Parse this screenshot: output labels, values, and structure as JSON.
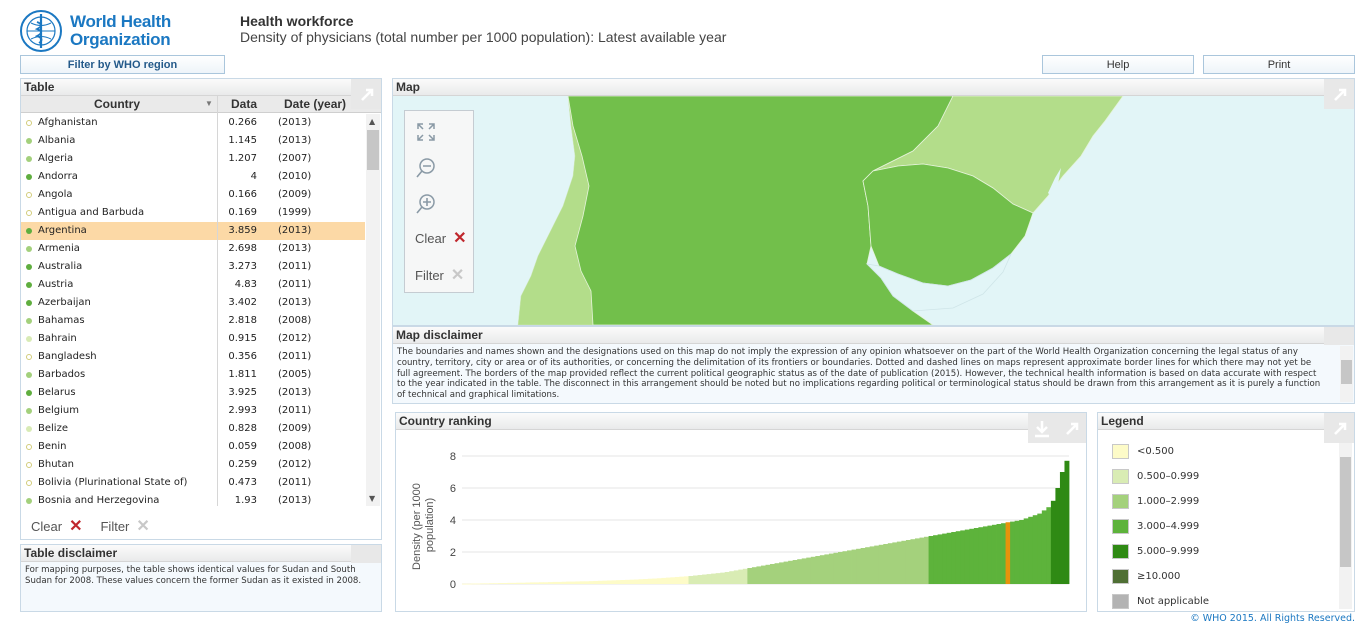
{
  "brand": {
    "logo_line1": "World Health",
    "logo_line2": "Organization",
    "logo_icon": "who-emblem"
  },
  "header": {
    "title": "Health workforce",
    "subtitle": "Density of physicians (total number per 1000 population): Latest available year"
  },
  "toolbar": {
    "filter_region": "Filter by WHO region",
    "help": "Help",
    "print": "Print"
  },
  "table_panel": {
    "title": "Table",
    "columns": [
      "Country",
      "Data",
      "Date (year)"
    ],
    "rows": [
      {
        "country": "Afghanistan",
        "value": "0.266",
        "year": "(2013)",
        "color": "#fdf9c4",
        "hollow": true
      },
      {
        "country": "Albania",
        "value": "1.145",
        "year": "(2013)",
        "color": "#a3d07c"
      },
      {
        "country": "Algeria",
        "value": "1.207",
        "year": "(2007)",
        "color": "#a3d07c"
      },
      {
        "country": "Andorra",
        "value": "4",
        "year": "(2010)",
        "color": "#5fae3f"
      },
      {
        "country": "Angola",
        "value": "0.166",
        "year": "(2009)",
        "color": "#fdf9c4",
        "hollow": true
      },
      {
        "country": "Antigua and Barbuda",
        "value": "0.169",
        "year": "(1999)",
        "color": "#fdf9c4",
        "hollow": true
      },
      {
        "country": "Argentina",
        "value": "3.859",
        "year": "(2013)",
        "color": "#5fae3f",
        "selected": true
      },
      {
        "country": "Armenia",
        "value": "2.698",
        "year": "(2013)",
        "color": "#a3d07c"
      },
      {
        "country": "Australia",
        "value": "3.273",
        "year": "(2011)",
        "color": "#5fae3f"
      },
      {
        "country": "Austria",
        "value": "4.83",
        "year": "(2011)",
        "color": "#5fae3f"
      },
      {
        "country": "Azerbaijan",
        "value": "3.402",
        "year": "(2013)",
        "color": "#5fae3f"
      },
      {
        "country": "Bahamas",
        "value": "2.818",
        "year": "(2008)",
        "color": "#a3d07c"
      },
      {
        "country": "Bahrain",
        "value": "0.915",
        "year": "(2012)",
        "color": "#d8ebb5"
      },
      {
        "country": "Bangladesh",
        "value": "0.356",
        "year": "(2011)",
        "color": "#fdf9c4",
        "hollow": true
      },
      {
        "country": "Barbados",
        "value": "1.811",
        "year": "(2005)",
        "color": "#a3d07c"
      },
      {
        "country": "Belarus",
        "value": "3.925",
        "year": "(2013)",
        "color": "#5fae3f"
      },
      {
        "country": "Belgium",
        "value": "2.993",
        "year": "(2011)",
        "color": "#a3d07c"
      },
      {
        "country": "Belize",
        "value": "0.828",
        "year": "(2009)",
        "color": "#d8ebb5"
      },
      {
        "country": "Benin",
        "value": "0.059",
        "year": "(2008)",
        "color": "#fdf9c4",
        "hollow": true
      },
      {
        "country": "Bhutan",
        "value": "0.259",
        "year": "(2012)",
        "color": "#fdf9c4",
        "hollow": true
      },
      {
        "country": "Bolivia (Plurinational State of)",
        "value": "0.473",
        "year": "(2011)",
        "color": "#fdf9c4",
        "hollow": true
      },
      {
        "country": "Bosnia and Herzegovina",
        "value": "1.93",
        "year": "(2013)",
        "color": "#a3d07c"
      }
    ],
    "clear_label": "Clear",
    "filter_label": "Filter"
  },
  "table_disclaimer": {
    "title": "Table disclaimer",
    "text": "For mapping purposes, the table shows identical values for Sudan and South Sudan for 2008. These values concern the former Sudan as it existed in 2008."
  },
  "map_panel": {
    "title": "Map",
    "clear_label": "Clear",
    "filter_label": "Filter",
    "tools": [
      "fullscreen-icon",
      "zoom-out-icon",
      "zoom-in-icon"
    ]
  },
  "map_disclaimer": {
    "title": "Map disclaimer",
    "text": "The boundaries and names shown and the designations used on this map do not imply the expression of any opinion whatsoever on the part of the World Health Organization concerning the legal status of any country, territory, city or area or of its authorities, or concerning the delimitation of its frontiers or boundaries. Dotted and dashed lines on maps represent approximate border lines for which there may not yet be full agreement. The borders of the map provided reflect the current political geographic status as of the date of publication (2015). However, the technical health information is based on data accurate with respect to the year indicated in the table. The disconnect in this arrangement should be noted but no implications regarding political or terminological status should be drawn from this arrangement as it is purely a function of technical and graphical limitations."
  },
  "ranking_panel": {
    "title": "Country ranking"
  },
  "legend_panel": {
    "title": "Legend",
    "items": [
      {
        "label": "<0.500",
        "color": "#fdfbc8"
      },
      {
        "label": "0.500–0.999",
        "color": "#d9ecb4"
      },
      {
        "label": "1.000–2.999",
        "color": "#a4d17c"
      },
      {
        "label": "3.000–4.999",
        "color": "#5db33b"
      },
      {
        "label": "5.000–9.999",
        "color": "#2f8a14"
      },
      {
        "label": "≥10.000",
        "color": "#4f6f34"
      },
      {
        "label": "Not applicable",
        "color": "#b3b3b3"
      }
    ]
  },
  "chart_data": {
    "type": "bar",
    "title": "",
    "xlabel": "",
    "ylabel": "Density (per 1000 population)",
    "yticks": [
      0,
      2,
      4,
      6,
      8
    ],
    "ylim": [
      0,
      8
    ],
    "highlight": {
      "country": "Argentina",
      "value": 3.859,
      "color": "#e8930c"
    },
    "series": [
      {
        "values": [
          0.02,
          0.02,
          0.03,
          0.03,
          0.04,
          0.04,
          0.05,
          0.05,
          0.06,
          0.06,
          0.07,
          0.07,
          0.08,
          0.08,
          0.09,
          0.1,
          0.1,
          0.11,
          0.11,
          0.12,
          0.13,
          0.13,
          0.14,
          0.15,
          0.15,
          0.16,
          0.17,
          0.17,
          0.18,
          0.19,
          0.2,
          0.21,
          0.22,
          0.23,
          0.24,
          0.25,
          0.26,
          0.27,
          0.28,
          0.3,
          0.31,
          0.33,
          0.34,
          0.36,
          0.38,
          0.4,
          0.42,
          0.44,
          0.46,
          0.48,
          0.5,
          0.53,
          0.56,
          0.59,
          0.62,
          0.65,
          0.68,
          0.71,
          0.75,
          0.8,
          0.85,
          0.9,
          0.95,
          1.0,
          1.05,
          1.1,
          1.15,
          1.2,
          1.25,
          1.3,
          1.35,
          1.4,
          1.45,
          1.5,
          1.55,
          1.6,
          1.65,
          1.7,
          1.75,
          1.8,
          1.85,
          1.9,
          1.95,
          2.0,
          2.05,
          2.1,
          2.15,
          2.2,
          2.25,
          2.3,
          2.35,
          2.4,
          2.45,
          2.5,
          2.55,
          2.6,
          2.65,
          2.7,
          2.75,
          2.8,
          2.85,
          2.9,
          2.95,
          3.0,
          3.05,
          3.1,
          3.15,
          3.2,
          3.25,
          3.3,
          3.35,
          3.4,
          3.45,
          3.5,
          3.55,
          3.6,
          3.65,
          3.7,
          3.75,
          3.8,
          3.859,
          3.9,
          3.95,
          4.0,
          4.1,
          4.2,
          4.3,
          4.4,
          4.6,
          4.8,
          5.2,
          6.0,
          7.0,
          7.7
        ]
      }
    ]
  },
  "footer": {
    "copyright": "© WHO 2015. All Rights Reserved."
  }
}
